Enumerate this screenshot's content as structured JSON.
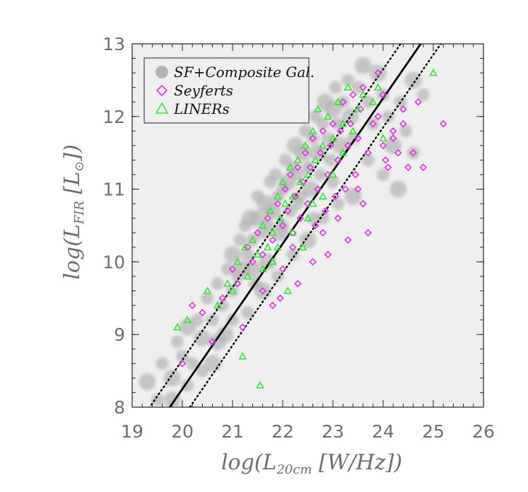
{
  "chart_data": {
    "type": "scatter",
    "xlabel": "log(L20cm [W/Hz])",
    "ylabel": "log(LFIR [L⊙])",
    "xlim": [
      19,
      26
    ],
    "ylim": [
      8,
      13
    ],
    "x_ticks": [
      19,
      20,
      21,
      22,
      23,
      24,
      25,
      26
    ],
    "y_ticks": [
      8,
      9,
      10,
      11,
      12,
      13
    ],
    "legend_position": "top-left",
    "grid": false,
    "fit_lines": {
      "slope": 1.0,
      "intercept": -11.75,
      "scatter_offset": 0.4,
      "styles": {
        "fit": "solid",
        "bounds": "dotted"
      }
    },
    "series": [
      {
        "name": "SF+Composite Gal.",
        "marker": "filled-circle",
        "color": "#b4b4b4",
        "points": [
          [
            19.3,
            8.35
          ],
          [
            19.5,
            8.1
          ],
          [
            19.6,
            8.6
          ],
          [
            19.8,
            8.4
          ],
          [
            19.9,
            8.9
          ],
          [
            20.0,
            8.7
          ],
          [
            20.1,
            9.1
          ],
          [
            20.2,
            8.6
          ],
          [
            20.3,
            9.2
          ],
          [
            20.4,
            8.95
          ],
          [
            20.5,
            9.5
          ],
          [
            20.6,
            9.2
          ],
          [
            20.6,
            8.6
          ],
          [
            20.7,
            9.7
          ],
          [
            20.8,
            9.4
          ],
          [
            20.85,
            9.0
          ],
          [
            20.9,
            9.9
          ],
          [
            21.0,
            9.6
          ],
          [
            21.0,
            10.1
          ],
          [
            21.1,
            9.8
          ],
          [
            21.15,
            10.3
          ],
          [
            21.2,
            9.9
          ],
          [
            21.25,
            10.5
          ],
          [
            21.3,
            10.1
          ],
          [
            21.35,
            10.6
          ],
          [
            21.4,
            10.3
          ],
          [
            21.45,
            9.7
          ],
          [
            21.5,
            10.6
          ],
          [
            21.5,
            10.9
          ],
          [
            21.6,
            10.4
          ],
          [
            21.65,
            10.8
          ],
          [
            21.7,
            10.5
          ],
          [
            21.75,
            11.1
          ],
          [
            21.8,
            10.7
          ],
          [
            21.85,
            11.2
          ],
          [
            21.9,
            10.9
          ],
          [
            21.95,
            10.4
          ],
          [
            22.0,
            11.0
          ],
          [
            22.05,
            11.4
          ],
          [
            22.1,
            11.1
          ],
          [
            22.15,
            10.7
          ],
          [
            22.2,
            11.3
          ],
          [
            22.25,
            11.6
          ],
          [
            22.3,
            11.2
          ],
          [
            22.35,
            10.9
          ],
          [
            22.4,
            11.5
          ],
          [
            22.45,
            11.8
          ],
          [
            22.5,
            11.3
          ],
          [
            22.55,
            11.0
          ],
          [
            22.6,
            11.7
          ],
          [
            22.65,
            12.0
          ],
          [
            22.7,
            11.5
          ],
          [
            22.75,
            11.2
          ],
          [
            22.8,
            11.9
          ],
          [
            22.85,
            12.2
          ],
          [
            22.9,
            11.7
          ],
          [
            22.95,
            11.4
          ],
          [
            23.0,
            12.1
          ],
          [
            23.05,
            12.4
          ],
          [
            23.1,
            11.9
          ],
          [
            23.15,
            11.6
          ],
          [
            23.2,
            12.2
          ],
          [
            23.3,
            12.5
          ],
          [
            23.35,
            12.0
          ],
          [
            23.4,
            11.7
          ],
          [
            23.5,
            12.4
          ],
          [
            23.6,
            12.7
          ],
          [
            23.7,
            12.2
          ],
          [
            23.8,
            11.9
          ],
          [
            23.9,
            12.6
          ],
          [
            24.0,
            12.3
          ],
          [
            24.1,
            12.0
          ],
          [
            24.2,
            11.6
          ],
          [
            24.35,
            12.2
          ],
          [
            24.45,
            11.8
          ],
          [
            24.6,
            12.5
          ],
          [
            24.8,
            12.3
          ],
          [
            24.6,
            11.5
          ],
          [
            24.3,
            11.0
          ],
          [
            24.0,
            11.2
          ],
          [
            23.7,
            11.4
          ],
          [
            23.4,
            10.9
          ],
          [
            23.1,
            10.8
          ],
          [
            22.8,
            10.6
          ],
          [
            22.5,
            10.3
          ],
          [
            22.2,
            10.1
          ],
          [
            21.9,
            9.8
          ],
          [
            21.6,
            9.6
          ],
          [
            21.3,
            9.3
          ],
          [
            21.0,
            9.2
          ],
          [
            20.7,
            8.9
          ],
          [
            20.4,
            8.5
          ],
          [
            20.1,
            8.3
          ],
          [
            19.8,
            8.1
          ],
          [
            22.0,
            10.5
          ],
          [
            22.3,
            10.8
          ],
          [
            21.7,
            10.0
          ],
          [
            22.6,
            10.6
          ],
          [
            23.0,
            11.1
          ],
          [
            21.4,
            9.9
          ]
        ]
      },
      {
        "name": "Seyferts",
        "marker": "open-diamond",
        "color": "#e62ee6",
        "points": [
          [
            20.0,
            8.6
          ],
          [
            20.2,
            9.4
          ],
          [
            20.4,
            9.3
          ],
          [
            20.6,
            8.9
          ],
          [
            20.8,
            9.5
          ],
          [
            21.0,
            9.9
          ],
          [
            21.1,
            9.7
          ],
          [
            21.2,
            9.1
          ],
          [
            21.3,
            10.2
          ],
          [
            21.4,
            10.0
          ],
          [
            21.5,
            10.4
          ],
          [
            21.6,
            10.1
          ],
          [
            21.7,
            10.6
          ],
          [
            21.8,
            10.3
          ],
          [
            21.9,
            10.8
          ],
          [
            21.95,
            9.5
          ],
          [
            22.0,
            10.5
          ],
          [
            22.05,
            11.0
          ],
          [
            22.1,
            10.7
          ],
          [
            22.15,
            11.2
          ],
          [
            22.2,
            10.4
          ],
          [
            22.25,
            10.9
          ],
          [
            22.3,
            11.3
          ],
          [
            22.35,
            10.6
          ],
          [
            22.4,
            11.1
          ],
          [
            22.45,
            11.5
          ],
          [
            22.5,
            10.8
          ],
          [
            22.55,
            11.3
          ],
          [
            22.6,
            11.7
          ],
          [
            22.65,
            10.5
          ],
          [
            22.7,
            11.0
          ],
          [
            22.75,
            11.5
          ],
          [
            22.8,
            11.8
          ],
          [
            22.85,
            10.7
          ],
          [
            22.9,
            11.2
          ],
          [
            22.95,
            11.6
          ],
          [
            23.0,
            11.9
          ],
          [
            23.05,
            10.9
          ],
          [
            23.1,
            11.4
          ],
          [
            23.15,
            11.8
          ],
          [
            23.2,
            12.2
          ],
          [
            23.25,
            11.0
          ],
          [
            23.3,
            11.6
          ],
          [
            23.35,
            11.9
          ],
          [
            23.4,
            12.3
          ],
          [
            23.45,
            11.2
          ],
          [
            23.5,
            11.7
          ],
          [
            23.55,
            12.1
          ],
          [
            23.6,
            12.4
          ],
          [
            23.7,
            11.5
          ],
          [
            23.8,
            11.9
          ],
          [
            23.9,
            12.0
          ],
          [
            24.0,
            11.6
          ],
          [
            24.1,
            11.3
          ],
          [
            24.2,
            11.8
          ],
          [
            24.3,
            11.5
          ],
          [
            24.4,
            11.9
          ],
          [
            24.5,
            11.3
          ],
          [
            24.6,
            11.5
          ],
          [
            24.8,
            11.3
          ],
          [
            25.2,
            11.9
          ],
          [
            24.7,
            12.2
          ],
          [
            23.7,
            10.4
          ],
          [
            23.3,
            10.3
          ],
          [
            22.9,
            10.1
          ],
          [
            22.6,
            10.0
          ],
          [
            22.3,
            9.7
          ],
          [
            22.0,
            9.9
          ],
          [
            21.8,
            9.4
          ],
          [
            21.6,
            9.6
          ],
          [
            24.4,
            12.1
          ],
          [
            24.0,
            12.3
          ],
          [
            23.9,
            12.6
          ],
          [
            24.2,
            11.7
          ],
          [
            23.5,
            11.0
          ],
          [
            23.1,
            10.6
          ],
          [
            22.8,
            10.4
          ],
          [
            22.2,
            10.2
          ],
          [
            24.05,
            11.4
          ],
          [
            23.6,
            10.8
          ]
        ]
      },
      {
        "name": "LINERs",
        "marker": "open-triangle",
        "color": "#33e633",
        "points": [
          [
            19.9,
            9.1
          ],
          [
            20.1,
            9.2
          ],
          [
            20.5,
            9.6
          ],
          [
            20.7,
            9.4
          ],
          [
            20.9,
            9.7
          ],
          [
            21.0,
            9.6
          ],
          [
            21.1,
            10.0
          ],
          [
            21.2,
            8.7
          ],
          [
            21.25,
            10.2
          ],
          [
            21.3,
            9.8
          ],
          [
            21.4,
            10.3
          ],
          [
            21.5,
            10.1
          ],
          [
            21.55,
            8.3
          ],
          [
            21.6,
            10.5
          ],
          [
            21.7,
            10.2
          ],
          [
            21.75,
            10.7
          ],
          [
            21.8,
            10.4
          ],
          [
            21.9,
            10.9
          ],
          [
            21.95,
            10.6
          ],
          [
            22.0,
            11.1
          ],
          [
            22.05,
            10.8
          ],
          [
            22.1,
            9.6
          ],
          [
            22.15,
            11.3
          ],
          [
            22.2,
            10.9
          ],
          [
            22.3,
            11.4
          ],
          [
            22.35,
            11.1
          ],
          [
            22.4,
            10.2
          ],
          [
            22.45,
            11.6
          ],
          [
            22.5,
            11.2
          ],
          [
            22.6,
            11.8
          ],
          [
            22.65,
            11.4
          ],
          [
            22.7,
            12.1
          ],
          [
            22.8,
            11.6
          ],
          [
            22.9,
            12.0
          ],
          [
            23.0,
            11.7
          ],
          [
            23.1,
            12.2
          ],
          [
            23.2,
            11.9
          ],
          [
            23.3,
            12.4
          ],
          [
            23.4,
            11.8
          ],
          [
            23.5,
            12.1
          ],
          [
            23.6,
            12.3
          ],
          [
            23.8,
            12.2
          ],
          [
            25.0,
            12.6
          ],
          [
            24.0,
            11.7
          ],
          [
            23.0,
            11.2
          ],
          [
            22.8,
            10.9
          ],
          [
            22.5,
            10.6
          ],
          [
            22.2,
            10.4
          ],
          [
            21.9,
            10.2
          ],
          [
            21.6,
            9.9
          ],
          [
            23.9,
            12.4
          ],
          [
            23.2,
            11.5
          ],
          [
            22.6,
            10.8
          ],
          [
            21.8,
            10.0
          ]
        ]
      }
    ]
  }
}
